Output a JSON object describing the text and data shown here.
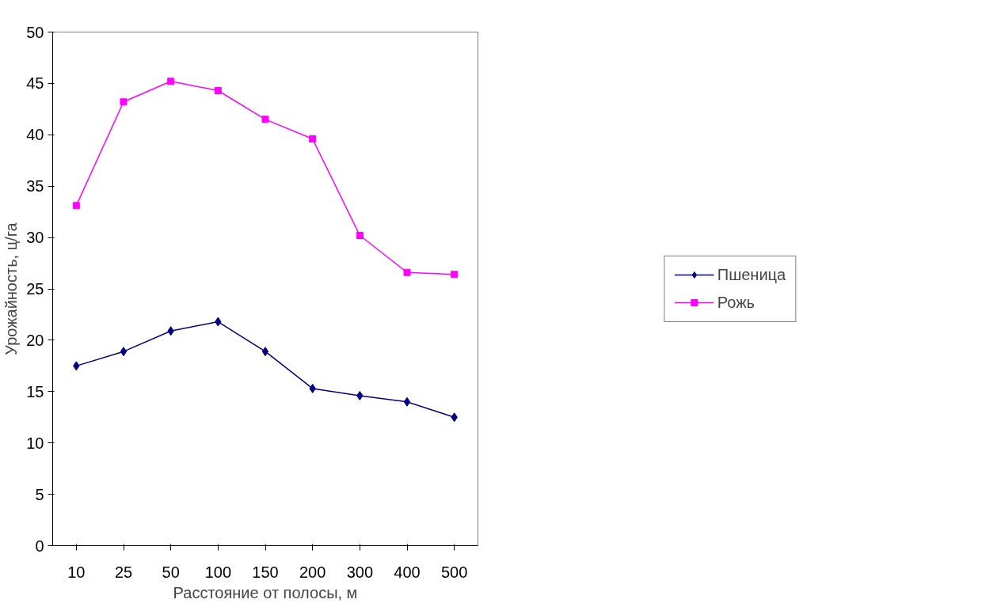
{
  "chart_data": {
    "type": "line",
    "xlabel": "Расстояние от полосы, м",
    "ylabel": "Урожайность, ц/га",
    "categories": [
      "10",
      "25",
      "50",
      "100",
      "150",
      "200",
      "300",
      "400",
      "500"
    ],
    "series": [
      {
        "name": "Пшеница",
        "color": "#000080",
        "marker": "diamond",
        "values": [
          17.5,
          18.9,
          20.9,
          21.8,
          18.9,
          15.3,
          14.6,
          14.0,
          12.5
        ]
      },
      {
        "name": "Рожь",
        "color": "#ff00ff",
        "marker": "square",
        "values": [
          33.1,
          43.2,
          45.2,
          44.3,
          41.5,
          39.6,
          30.2,
          26.6,
          26.4
        ]
      }
    ],
    "ylim": [
      0,
      50
    ],
    "yticks": [
      0,
      5,
      10,
      15,
      20,
      25,
      30,
      35,
      40,
      45,
      50
    ],
    "grid": false,
    "legend": "right",
    "line_style": "solid"
  }
}
